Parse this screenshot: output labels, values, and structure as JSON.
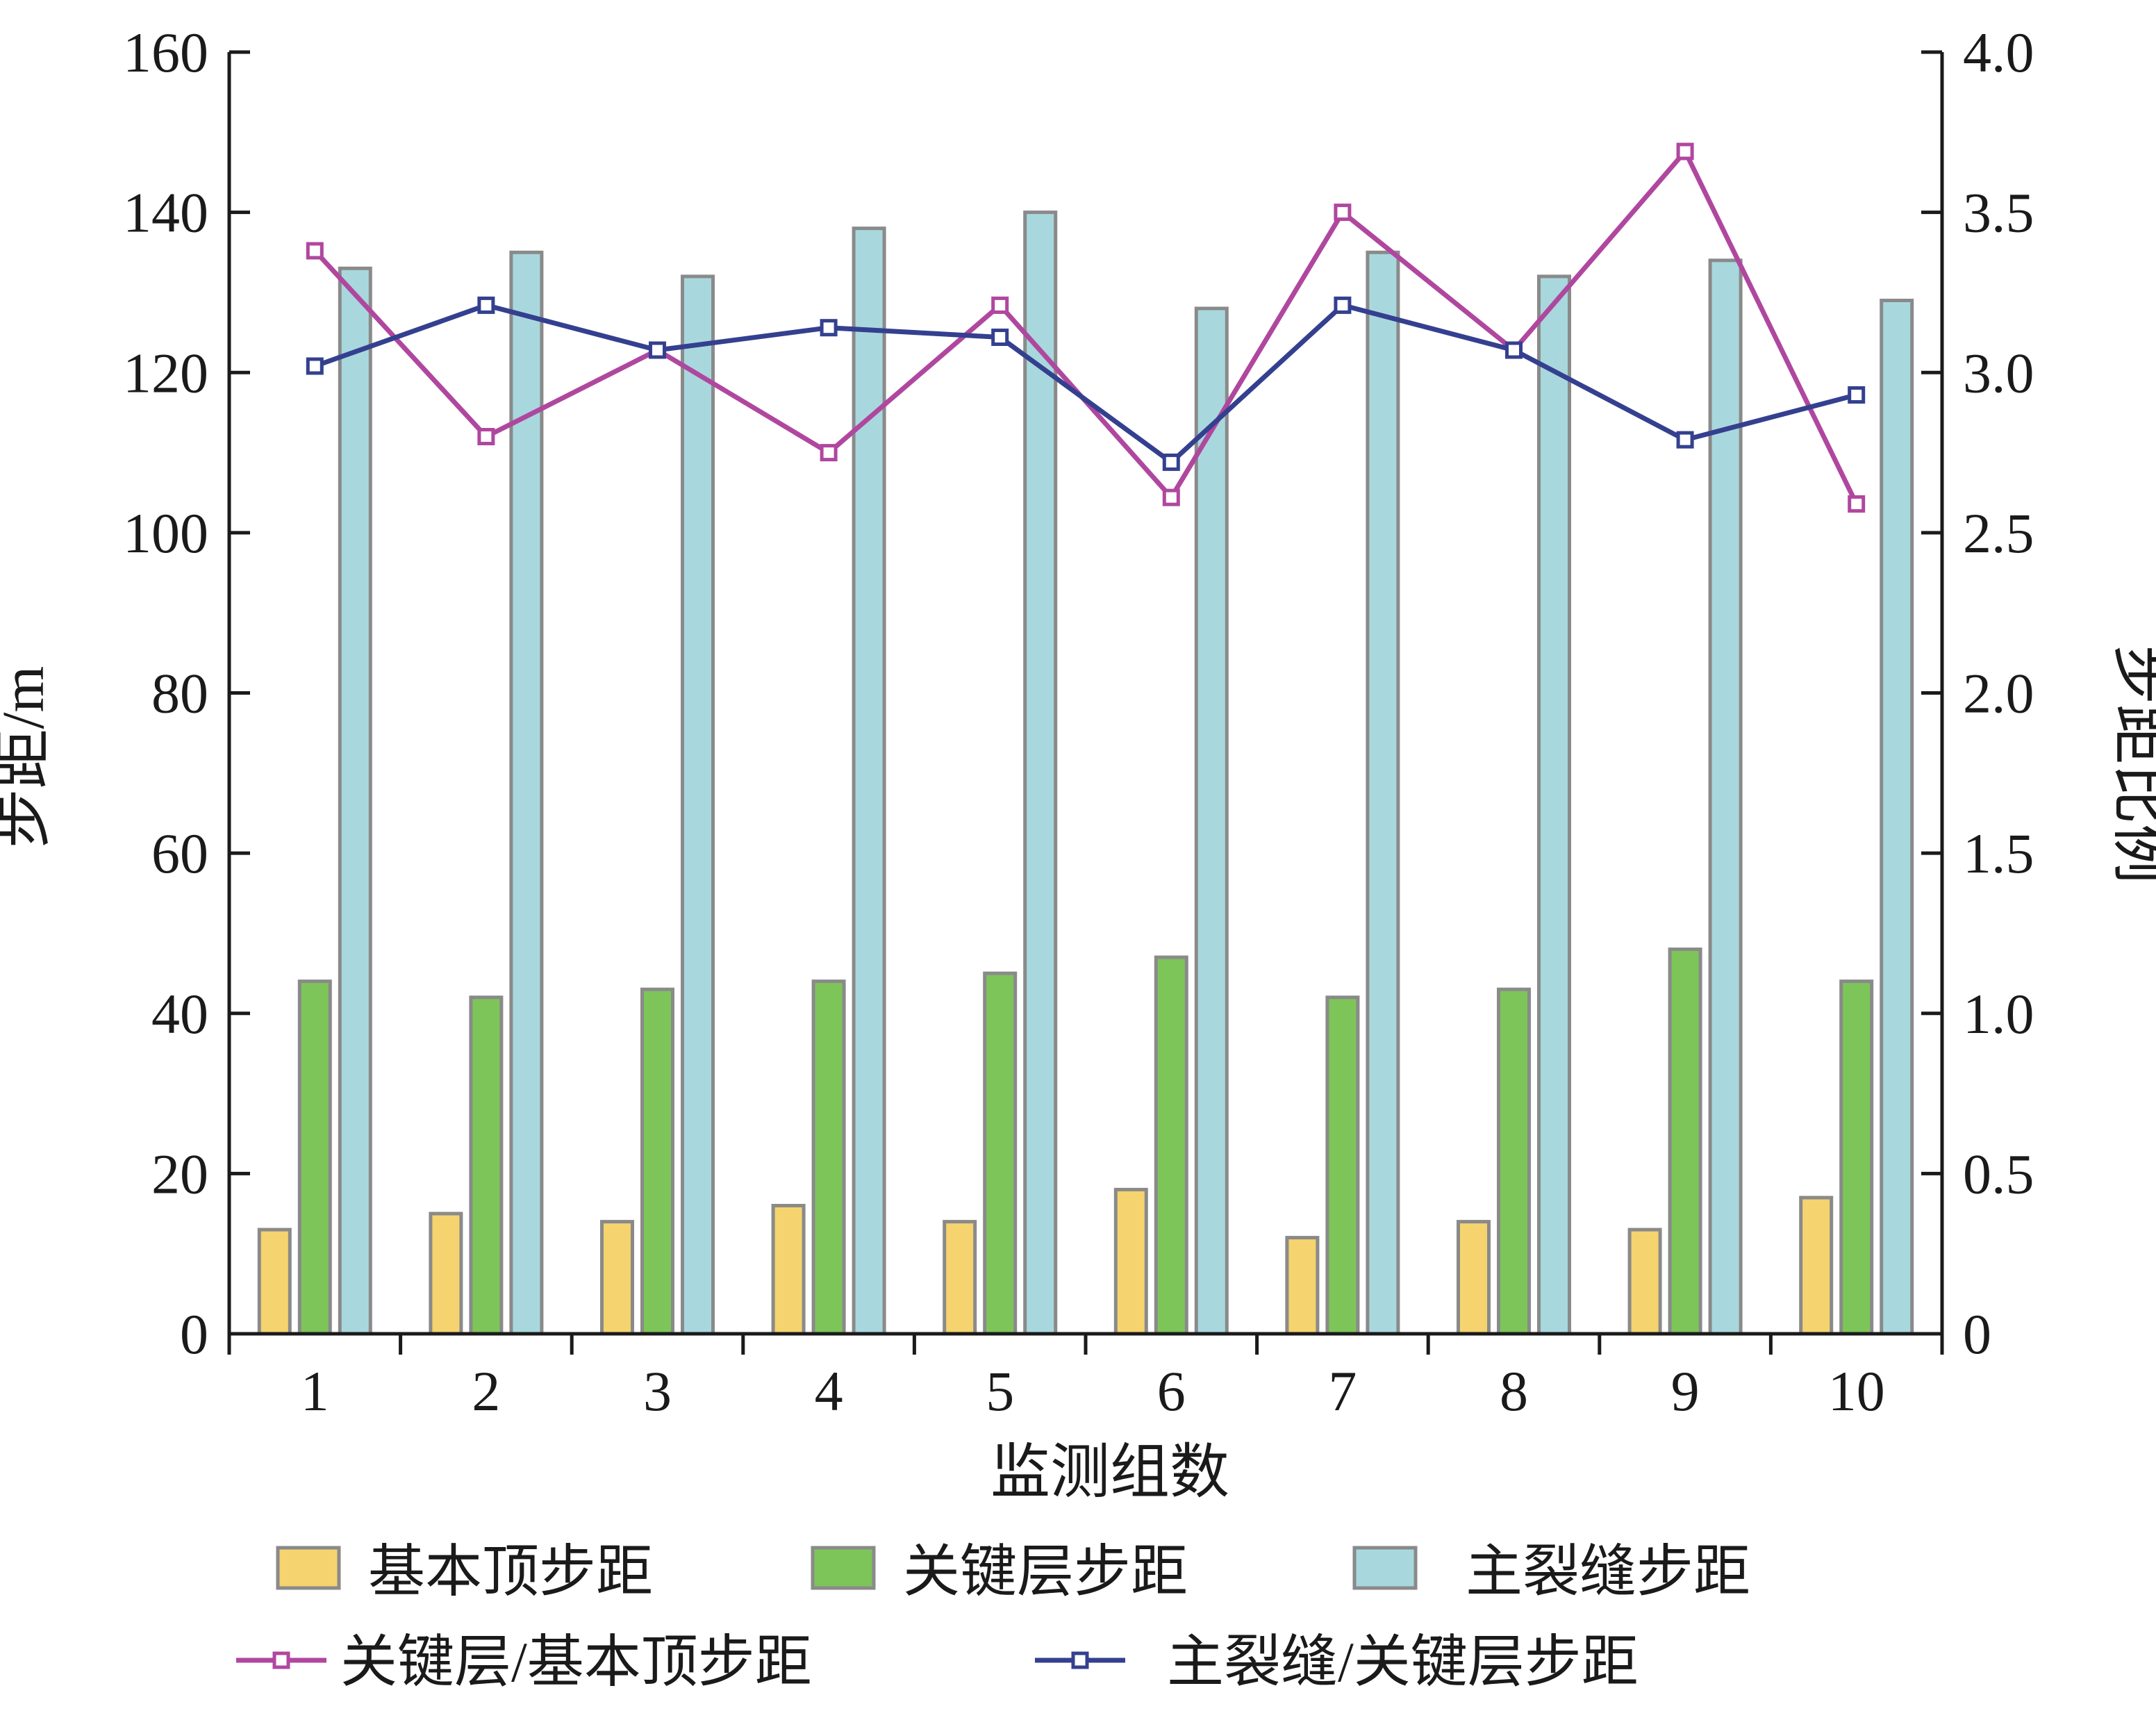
{
  "chart_data": {
    "type": "bar",
    "categories": [
      "1",
      "2",
      "3",
      "4",
      "5",
      "6",
      "7",
      "8",
      "9",
      "10"
    ],
    "xlabel": "监测组数",
    "ylabel": "步距/m",
    "y2label": "步距比例",
    "ylim": [
      0,
      160
    ],
    "y2lim": [
      0,
      4.0
    ],
    "yticks": [
      "0",
      "20",
      "40",
      "60",
      "80",
      "100",
      "120",
      "140",
      "160"
    ],
    "y2ticks": [
      "0",
      "0.5",
      "1.0",
      "1.5",
      "2.0",
      "2.5",
      "3.0",
      "3.5",
      "4.0"
    ],
    "grid": false,
    "legend_position": "bottom",
    "series": [
      {
        "name": "基本顶步距",
        "kind": "bar",
        "axis": "left",
        "color": "#f5d36e",
        "values": [
          13,
          15,
          14,
          16,
          14,
          18,
          12,
          14,
          13,
          17
        ]
      },
      {
        "name": "关键层步距",
        "kind": "bar",
        "axis": "left",
        "color": "#7dc559",
        "values": [
          44,
          42,
          43,
          44,
          45,
          47,
          42,
          43,
          48,
          44
        ]
      },
      {
        "name": "主裂缝步距",
        "kind": "bar",
        "axis": "left",
        "color": "#a8d8dd",
        "values": [
          133,
          135,
          132,
          138,
          140,
          128,
          135,
          132,
          134,
          129
        ]
      },
      {
        "name": "关键层/基本顶步距",
        "kind": "line",
        "axis": "right",
        "color": "#b0479f",
        "values": [
          3.38,
          2.8,
          3.07,
          2.75,
          3.21,
          2.61,
          3.5,
          3.07,
          3.69,
          2.59
        ]
      },
      {
        "name": "主裂缝/关键层步距",
        "kind": "line",
        "axis": "right",
        "color": "#34408f",
        "values": [
          3.02,
          3.21,
          3.07,
          3.14,
          3.11,
          2.72,
          3.21,
          3.07,
          2.79,
          2.93
        ]
      }
    ]
  }
}
